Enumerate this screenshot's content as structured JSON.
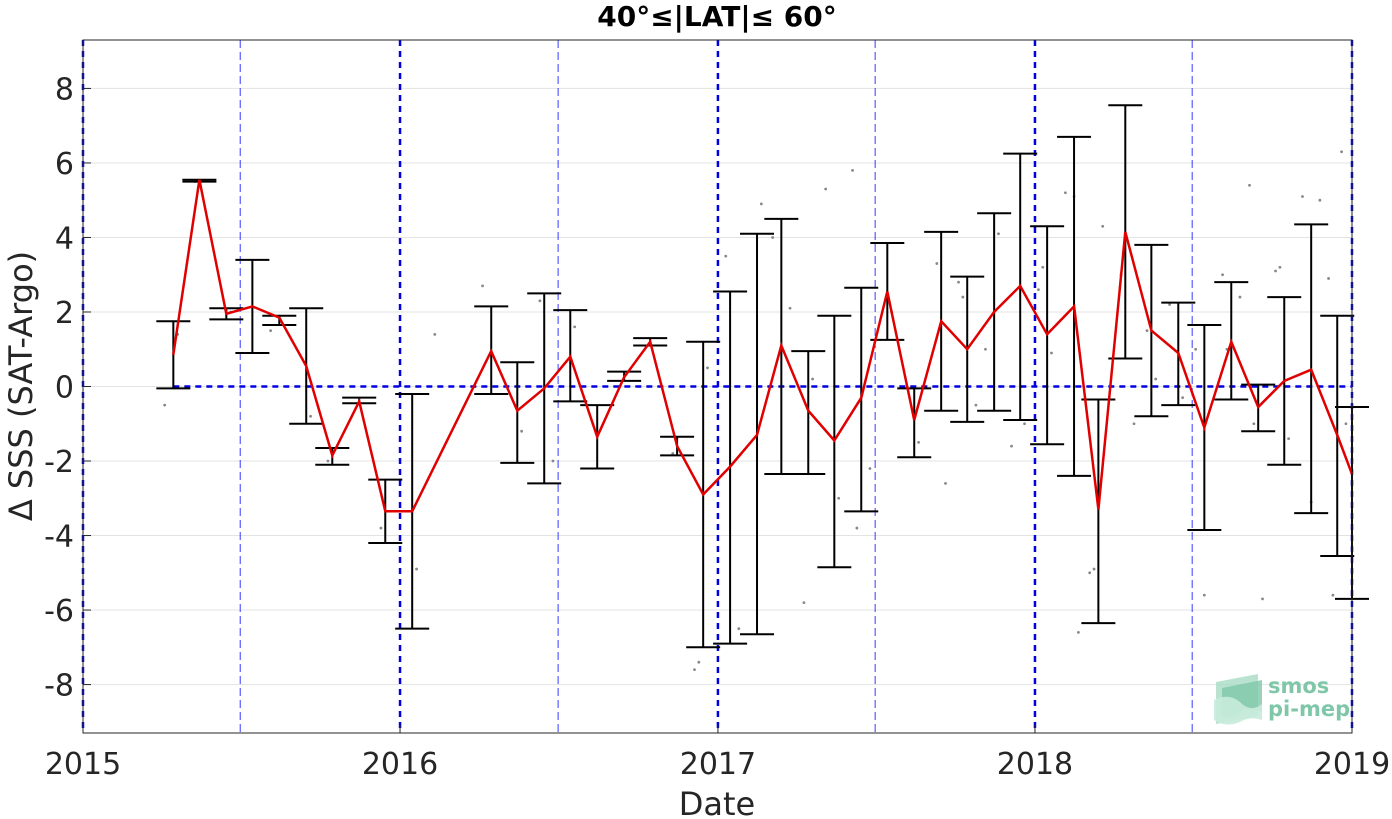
{
  "chart_data": {
    "type": "line",
    "title": "40°≤|LAT|≤ 60°",
    "xlabel": "Date",
    "ylabel": "Δ SSS (SAT-Argo)",
    "xlim": [
      "2015-01-01",
      "2019-01-01"
    ],
    "ylim": [
      -9.3,
      9.3
    ],
    "xticks": [
      "2015",
      "2016",
      "2017",
      "2018",
      "2019"
    ],
    "yticks": [
      "-8",
      "-6",
      "-4",
      "-2",
      "0",
      "2",
      "4",
      "6",
      "8"
    ],
    "grid": "horizontal",
    "reference_line_y": 0,
    "year_lines": [
      "2015-01-01",
      "2016-01-01",
      "2017-01-01",
      "2018-01-01",
      "2019-01-01"
    ],
    "mid_year_lines": [
      "2015-07-01",
      "2016-07-01",
      "2017-07-01",
      "2018-07-01"
    ],
    "series": [
      {
        "color": "#e00000",
        "points": [
          {
            "x": "2015-04-15",
            "mean": 0.85,
            "low": -0.05,
            "high": 1.75
          },
          {
            "x": "2015-05-15",
            "mean": 5.55,
            "low": 5.5,
            "high": 5.55
          },
          {
            "x": "2015-06-15",
            "mean": 1.95,
            "low": 1.8,
            "high": 2.1
          },
          {
            "x": "2015-07-15",
            "mean": 2.15,
            "low": 0.9,
            "high": 3.4
          },
          {
            "x": "2015-08-15",
            "mean": 1.85,
            "low": 1.65,
            "high": 1.9
          },
          {
            "x": "2015-09-15",
            "mean": 0.55,
            "low": -1.0,
            "high": 2.1
          },
          {
            "x": "2015-10-15",
            "mean": -1.85,
            "low": -2.1,
            "high": -1.65
          },
          {
            "x": "2015-11-15",
            "mean": -0.4,
            "low": -0.45,
            "high": -0.3
          },
          {
            "x": "2015-12-15",
            "mean": -3.35,
            "low": -4.2,
            "high": -2.5
          },
          {
            "x": "2016-01-15",
            "mean": -3.35,
            "low": -6.5,
            "high": -0.2
          },
          {
            "x": "2016-04-15",
            "mean": 0.95,
            "low": -0.2,
            "high": 2.15
          },
          {
            "x": "2016-05-15",
            "mean": -0.65,
            "low": -2.05,
            "high": 0.65
          },
          {
            "x": "2016-06-15",
            "mean": -0.05,
            "low": -2.6,
            "high": 2.5
          },
          {
            "x": "2016-07-15",
            "mean": 0.8,
            "low": -0.4,
            "high": 2.05
          },
          {
            "x": "2016-08-15",
            "mean": -1.35,
            "low": -2.2,
            "high": -0.5
          },
          {
            "x": "2016-09-15",
            "mean": 0.25,
            "low": 0.15,
            "high": 0.4
          },
          {
            "x": "2016-10-15",
            "mean": 1.2,
            "low": 1.1,
            "high": 1.3
          },
          {
            "x": "2016-11-15",
            "mean": -1.6,
            "low": -1.85,
            "high": -1.35
          },
          {
            "x": "2016-12-15",
            "mean": -2.9,
            "low": -7.0,
            "high": 1.2
          },
          {
            "x": "2017-01-15",
            "mean": -2.15,
            "low": -6.9,
            "high": 2.55
          },
          {
            "x": "2017-02-15",
            "mean": -1.3,
            "low": -6.65,
            "high": 4.1
          },
          {
            "x": "2017-03-15",
            "mean": 1.1,
            "low": -2.35,
            "high": 4.5
          },
          {
            "x": "2017-04-15",
            "mean": -0.65,
            "low": -2.35,
            "high": 0.95
          },
          {
            "x": "2017-05-15",
            "mean": -1.45,
            "low": -4.85,
            "high": 1.9
          },
          {
            "x": "2017-06-15",
            "mean": -0.3,
            "low": -3.35,
            "high": 2.65
          },
          {
            "x": "2017-07-15",
            "mean": 2.55,
            "low": 1.25,
            "high": 3.85
          },
          {
            "x": "2017-08-15",
            "mean": -0.9,
            "low": -1.9,
            "high": -0.05
          },
          {
            "x": "2017-09-15",
            "mean": 1.75,
            "low": -0.65,
            "high": 4.15
          },
          {
            "x": "2017-10-15",
            "mean": 1.0,
            "low": -0.95,
            "high": 2.95
          },
          {
            "x": "2017-11-15",
            "mean": 2.0,
            "low": -0.65,
            "high": 4.65
          },
          {
            "x": "2017-12-15",
            "mean": 2.7,
            "low": -0.9,
            "high": 6.25
          },
          {
            "x": "2018-01-15",
            "mean": 1.4,
            "low": -1.55,
            "high": 4.3
          },
          {
            "x": "2018-02-15",
            "mean": 2.15,
            "low": -2.4,
            "high": 6.7
          },
          {
            "x": "2018-03-15",
            "mean": -3.3,
            "low": -6.35,
            "high": -0.35
          },
          {
            "x": "2018-04-15",
            "mean": 4.15,
            "low": 0.75,
            "high": 7.55
          },
          {
            "x": "2018-05-15",
            "mean": 1.5,
            "low": -0.8,
            "high": 3.8
          },
          {
            "x": "2018-06-15",
            "mean": 0.9,
            "low": -0.5,
            "high": 2.25
          },
          {
            "x": "2018-07-15",
            "mean": -1.1,
            "low": -3.85,
            "high": 1.65
          },
          {
            "x": "2018-08-15",
            "mean": 1.2,
            "low": -0.35,
            "high": 2.8
          },
          {
            "x": "2018-09-15",
            "mean": -0.55,
            "low": -1.2,
            "high": 0.05
          },
          {
            "x": "2018-10-15",
            "mean": 0.15,
            "low": -2.1,
            "high": 2.4
          },
          {
            "x": "2018-11-15",
            "mean": 0.45,
            "low": -3.4,
            "high": 4.35
          },
          {
            "x": "2018-12-15",
            "mean": -1.3,
            "low": -4.55,
            "high": 1.9
          },
          {
            "x": "2019-01-01",
            "mean": -2.35,
            "low": -5.7,
            "high": -0.55
          }
        ]
      }
    ],
    "scatter_color": "#888888",
    "scatter": [
      [
        "2015-04-05",
        -0.5
      ],
      [
        "2015-04-20",
        1.4
      ],
      [
        "2015-05-10",
        5.5
      ],
      [
        "2015-06-20",
        2.0
      ],
      [
        "2015-08-05",
        1.5
      ],
      [
        "2015-09-20",
        -0.8
      ],
      [
        "2015-10-10",
        -2.0
      ],
      [
        "2015-12-10",
        -3.8
      ],
      [
        "2016-01-20",
        -4.9
      ],
      [
        "2016-02-10",
        1.4
      ],
      [
        "2016-04-05",
        2.7
      ],
      [
        "2016-05-20",
        -1.2
      ],
      [
        "2016-06-10",
        2.3
      ],
      [
        "2016-06-25",
        -2.0
      ],
      [
        "2016-07-20",
        1.6
      ],
      [
        "2016-08-10",
        -1.0
      ],
      [
        "2016-11-10",
        -1.8
      ],
      [
        "2016-12-05",
        -7.6
      ],
      [
        "2016-12-10",
        -7.4
      ],
      [
        "2016-12-20",
        0.5
      ],
      [
        "2017-01-10",
        3.5
      ],
      [
        "2017-01-25",
        -6.5
      ],
      [
        "2017-02-20",
        4.9
      ],
      [
        "2017-03-05",
        4.0
      ],
      [
        "2017-03-25",
        2.1
      ],
      [
        "2017-04-10",
        -5.8
      ],
      [
        "2017-04-20",
        0.2
      ],
      [
        "2017-05-05",
        5.3
      ],
      [
        "2017-05-20",
        -3.0
      ],
      [
        "2017-06-05",
        5.8
      ],
      [
        "2017-06-10",
        -3.8
      ],
      [
        "2017-06-25",
        -2.2
      ],
      [
        "2017-07-20",
        2.0
      ],
      [
        "2017-08-20",
        -1.5
      ],
      [
        "2017-09-10",
        3.3
      ],
      [
        "2017-09-20",
        -2.6
      ],
      [
        "2017-10-05",
        2.8
      ],
      [
        "2017-10-10",
        2.4
      ],
      [
        "2017-10-25",
        -0.5
      ],
      [
        "2017-11-05",
        1.0
      ],
      [
        "2017-11-20",
        4.1
      ],
      [
        "2017-12-05",
        -1.6
      ],
      [
        "2017-12-20",
        -1.0
      ],
      [
        "2018-01-05",
        2.6
      ],
      [
        "2018-01-10",
        3.2
      ],
      [
        "2018-01-20",
        0.9
      ],
      [
        "2018-02-05",
        5.2
      ],
      [
        "2018-02-15",
        5.1
      ],
      [
        "2018-02-20",
        -6.6
      ],
      [
        "2018-03-05",
        -5.0
      ],
      [
        "2018-03-10",
        -4.9
      ],
      [
        "2018-03-20",
        4.3
      ],
      [
        "2018-04-10",
        3.0
      ],
      [
        "2018-04-25",
        -1.0
      ],
      [
        "2018-05-10",
        1.5
      ],
      [
        "2018-05-20",
        0.2
      ],
      [
        "2018-06-05",
        2.2
      ],
      [
        "2018-06-20",
        -0.3
      ],
      [
        "2018-07-05",
        1.0
      ],
      [
        "2018-07-15",
        -5.6
      ],
      [
        "2018-08-05",
        3.0
      ],
      [
        "2018-08-10",
        1.0
      ],
      [
        "2018-08-25",
        2.4
      ],
      [
        "2018-09-05",
        5.4
      ],
      [
        "2018-09-10",
        -1.0
      ],
      [
        "2018-09-20",
        -5.7
      ],
      [
        "2018-10-05",
        3.1
      ],
      [
        "2018-10-10",
        3.2
      ],
      [
        "2018-10-20",
        -1.4
      ],
      [
        "2018-11-05",
        5.1
      ],
      [
        "2018-11-15",
        -3.1
      ],
      [
        "2018-11-25",
        5.0
      ],
      [
        "2018-12-05",
        2.9
      ],
      [
        "2018-12-10",
        -5.6
      ],
      [
        "2018-12-20",
        6.3
      ],
      [
        "2018-12-25",
        -1.0
      ]
    ]
  },
  "logo": {
    "line1": "smos",
    "line2": "pi-mep",
    "color": "#7fc7a8"
  }
}
